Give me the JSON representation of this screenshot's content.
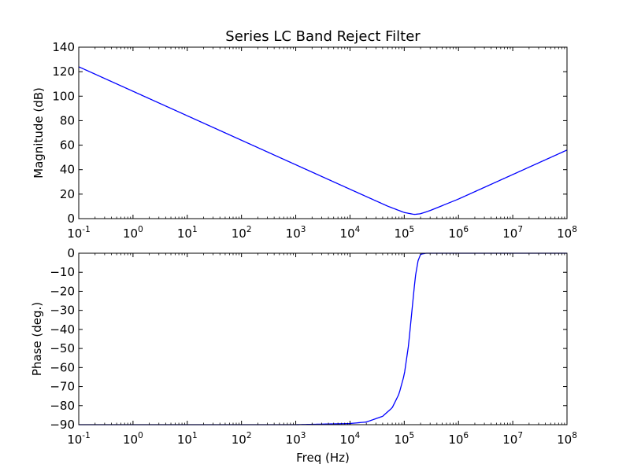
{
  "chart_data": [
    {
      "type": "line",
      "title": "Series LC Band Reject Filter",
      "xlabel": "",
      "ylabel": "Magnitude (dB)",
      "x_scale": "log",
      "xlim": [
        0.1,
        100000000
      ],
      "ylim": [
        0,
        140
      ],
      "x_ticks": [
        {
          "base": "10",
          "exp": "-1"
        },
        {
          "base": "10",
          "exp": "0"
        },
        {
          "base": "10",
          "exp": "1"
        },
        {
          "base": "10",
          "exp": "2"
        },
        {
          "base": "10",
          "exp": "3"
        },
        {
          "base": "10",
          "exp": "4"
        },
        {
          "base": "10",
          "exp": "5"
        },
        {
          "base": "10",
          "exp": "6"
        },
        {
          "base": "10",
          "exp": "7"
        },
        {
          "base": "10",
          "exp": "8"
        }
      ],
      "y_ticks": [
        "0",
        "20",
        "40",
        "60",
        "80",
        "100",
        "120",
        "140"
      ],
      "grid": false,
      "color": "#0000ff",
      "series": [
        {
          "x": [
            0.1,
            1,
            10,
            100,
            1000,
            10000,
            50000,
            100000,
            150000,
            160000,
            200000,
            300000,
            1000000,
            10000000,
            100000000
          ],
          "y": [
            124,
            104,
            84,
            64,
            44,
            24,
            10.1,
            5,
            3.5,
            3.5,
            4,
            6.6,
            16,
            36,
            56
          ]
        }
      ]
    },
    {
      "type": "line",
      "title": "",
      "xlabel": "Freq (Hz)",
      "ylabel": "Phase (deg.)",
      "x_scale": "log",
      "xlim": [
        0.1,
        100000000
      ],
      "ylim": [
        -90,
        0
      ],
      "x_ticks": [
        {
          "base": "10",
          "exp": "-1"
        },
        {
          "base": "10",
          "exp": "0"
        },
        {
          "base": "10",
          "exp": "1"
        },
        {
          "base": "10",
          "exp": "2"
        },
        {
          "base": "10",
          "exp": "3"
        },
        {
          "base": "10",
          "exp": "4"
        },
        {
          "base": "10",
          "exp": "5"
        },
        {
          "base": "10",
          "exp": "6"
        },
        {
          "base": "10",
          "exp": "7"
        },
        {
          "base": "10",
          "exp": "8"
        }
      ],
      "y_ticks": [
        "0",
        "−10",
        "−20",
        "−30",
        "−40",
        "−50",
        "−60",
        "−70",
        "−80",
        "−90"
      ],
      "grid": false,
      "color": "#0000ff",
      "series": [
        {
          "x": [
            0.1,
            1000,
            10000,
            20000,
            40000,
            60000,
            80000,
            100000,
            120000,
            140000,
            160000,
            180000,
            200000,
            250000,
            300000,
            400000,
            600000,
            1000000,
            2000000,
            100000000
          ],
          "y": [
            -90,
            -90,
            -89.4,
            -88.6,
            -85.6,
            -81.1,
            -73.9,
            -63.8,
            -48.3,
            -28.9,
            -12.3,
            -3.9,
            -0.6,
            0,
            0,
            0,
            0,
            0,
            0,
            0
          ]
        }
      ]
    }
  ]
}
